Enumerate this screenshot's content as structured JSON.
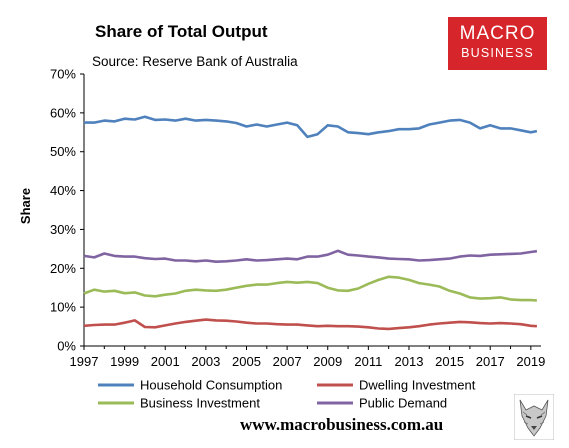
{
  "header": {
    "title": "Share of Total Output",
    "source": "Source: Reserve Bank of Australia"
  },
  "logo": {
    "line1": "MACRO",
    "line2": "BUSINESS"
  },
  "footer": {
    "url": "www.macrobusiness.com.au"
  },
  "colors": {
    "household": "#4f81bd",
    "dwelling": "#c0504d",
    "business": "#9bbb59",
    "public": "#8064a2",
    "brand": "#d7262b"
  },
  "chart_data": {
    "type": "line",
    "title": "Share of Total Output",
    "ylabel": "Share",
    "xlabel": "",
    "ylim": [
      0,
      70
    ],
    "xlim": [
      1997,
      2019.5
    ],
    "yticks": [
      "0%",
      "10%",
      "20%",
      "30%",
      "40%",
      "50%",
      "60%",
      "70%"
    ],
    "xticks": [
      "1997",
      "1999",
      "2001",
      "2003",
      "2005",
      "2007",
      "2009",
      "2011",
      "2013",
      "2015",
      "2017",
      "2019"
    ],
    "grid": false,
    "legend": "bottom",
    "series": [
      {
        "name": "Household Consumption",
        "color": "#4f81bd",
        "points": [
          [
            1997,
            57.5
          ],
          [
            1997.5,
            57.5
          ],
          [
            1998,
            58
          ],
          [
            1998.5,
            57.8
          ],
          [
            1999,
            58.5
          ],
          [
            1999.5,
            58.3
          ],
          [
            2000,
            59
          ],
          [
            2000.5,
            58.2
          ],
          [
            2001,
            58.3
          ],
          [
            2001.5,
            58
          ],
          [
            2002,
            58.5
          ],
          [
            2002.5,
            58
          ],
          [
            2003,
            58.2
          ],
          [
            2003.5,
            58
          ],
          [
            2004,
            57.8
          ],
          [
            2004.5,
            57.4
          ],
          [
            2005,
            56.5
          ],
          [
            2005.5,
            57
          ],
          [
            2006,
            56.5
          ],
          [
            2006.5,
            57
          ],
          [
            2007,
            57.5
          ],
          [
            2007.5,
            56.8
          ],
          [
            2008,
            53.8
          ],
          [
            2008.5,
            54.5
          ],
          [
            2009,
            56.8
          ],
          [
            2009.5,
            56.5
          ],
          [
            2010,
            55
          ],
          [
            2010.5,
            54.8
          ],
          [
            2011,
            54.5
          ],
          [
            2011.5,
            55
          ],
          [
            2012,
            55.3
          ],
          [
            2012.5,
            55.8
          ],
          [
            2013,
            55.8
          ],
          [
            2013.5,
            56
          ],
          [
            2014,
            57
          ],
          [
            2014.5,
            57.5
          ],
          [
            2015,
            58
          ],
          [
            2015.5,
            58.2
          ],
          [
            2016,
            57.5
          ],
          [
            2016.5,
            56
          ],
          [
            2017,
            56.8
          ],
          [
            2017.5,
            56
          ],
          [
            2018,
            56
          ],
          [
            2018.5,
            55.5
          ],
          [
            2019,
            55
          ],
          [
            2019.3,
            55.3
          ]
        ]
      },
      {
        "name": "Dwelling Investment",
        "color": "#c0504d",
        "points": [
          [
            1997,
            5.2
          ],
          [
            1997.5,
            5.4
          ],
          [
            1998,
            5.5
          ],
          [
            1998.5,
            5.5
          ],
          [
            1999,
            6
          ],
          [
            1999.5,
            6.6
          ],
          [
            2000,
            4.9
          ],
          [
            2000.5,
            4.8
          ],
          [
            2001,
            5.3
          ],
          [
            2001.5,
            5.8
          ],
          [
            2002,
            6.2
          ],
          [
            2002.5,
            6.5
          ],
          [
            2003,
            6.8
          ],
          [
            2003.5,
            6.6
          ],
          [
            2004,
            6.5
          ],
          [
            2004.5,
            6.3
          ],
          [
            2005,
            6
          ],
          [
            2005.5,
            5.8
          ],
          [
            2006,
            5.8
          ],
          [
            2006.5,
            5.6
          ],
          [
            2007,
            5.5
          ],
          [
            2007.5,
            5.5
          ],
          [
            2008,
            5.3
          ],
          [
            2008.5,
            5.1
          ],
          [
            2009,
            5.2
          ],
          [
            2009.5,
            5.1
          ],
          [
            2010,
            5.1
          ],
          [
            2010.5,
            5
          ],
          [
            2011,
            4.8
          ],
          [
            2011.5,
            4.5
          ],
          [
            2012,
            4.4
          ],
          [
            2012.5,
            4.6
          ],
          [
            2013,
            4.8
          ],
          [
            2013.5,
            5.1
          ],
          [
            2014,
            5.5
          ],
          [
            2014.5,
            5.8
          ],
          [
            2015,
            6
          ],
          [
            2015.5,
            6.2
          ],
          [
            2016,
            6.1
          ],
          [
            2016.5,
            5.9
          ],
          [
            2017,
            5.8
          ],
          [
            2017.5,
            5.9
          ],
          [
            2018,
            5.8
          ],
          [
            2018.5,
            5.6
          ],
          [
            2019,
            5.2
          ],
          [
            2019.3,
            5.1
          ]
        ]
      },
      {
        "name": "Business Investment",
        "color": "#9bbb59",
        "points": [
          [
            1997,
            13.5
          ],
          [
            1997.5,
            14.5
          ],
          [
            1998,
            14
          ],
          [
            1998.5,
            14.2
          ],
          [
            1999,
            13.6
          ],
          [
            1999.5,
            13.8
          ],
          [
            2000,
            13
          ],
          [
            2000.5,
            12.8
          ],
          [
            2001,
            13.2
          ],
          [
            2001.5,
            13.5
          ],
          [
            2002,
            14.2
          ],
          [
            2002.5,
            14.5
          ],
          [
            2003,
            14.3
          ],
          [
            2003.5,
            14.2
          ],
          [
            2004,
            14.5
          ],
          [
            2004.5,
            15
          ],
          [
            2005,
            15.5
          ],
          [
            2005.5,
            15.8
          ],
          [
            2006,
            15.8
          ],
          [
            2006.5,
            16.2
          ],
          [
            2007,
            16.5
          ],
          [
            2007.5,
            16.3
          ],
          [
            2008,
            16.5
          ],
          [
            2008.5,
            16.2
          ],
          [
            2009,
            15
          ],
          [
            2009.5,
            14.3
          ],
          [
            2010,
            14.2
          ],
          [
            2010.5,
            14.8
          ],
          [
            2011,
            16
          ],
          [
            2011.5,
            17
          ],
          [
            2012,
            17.8
          ],
          [
            2012.5,
            17.6
          ],
          [
            2013,
            17
          ],
          [
            2013.5,
            16.2
          ],
          [
            2014,
            15.8
          ],
          [
            2014.5,
            15.3
          ],
          [
            2015,
            14.2
          ],
          [
            2015.5,
            13.5
          ],
          [
            2016,
            12.5
          ],
          [
            2016.5,
            12.2
          ],
          [
            2017,
            12.3
          ],
          [
            2017.5,
            12.5
          ],
          [
            2018,
            12
          ],
          [
            2018.5,
            11.8
          ],
          [
            2019,
            11.8
          ],
          [
            2019.3,
            11.7
          ]
        ]
      },
      {
        "name": "Public Demand",
        "color": "#8064a2",
        "points": [
          [
            1997,
            23.2
          ],
          [
            1997.5,
            22.8
          ],
          [
            1998,
            23.8
          ],
          [
            1998.5,
            23.2
          ],
          [
            1999,
            23
          ],
          [
            1999.5,
            23
          ],
          [
            2000,
            22.6
          ],
          [
            2000.5,
            22.4
          ],
          [
            2001,
            22.5
          ],
          [
            2001.5,
            22
          ],
          [
            2002,
            22
          ],
          [
            2002.5,
            21.8
          ],
          [
            2003,
            22
          ],
          [
            2003.5,
            21.7
          ],
          [
            2004,
            21.8
          ],
          [
            2004.5,
            22
          ],
          [
            2005,
            22.3
          ],
          [
            2005.5,
            22
          ],
          [
            2006,
            22.1
          ],
          [
            2006.5,
            22.3
          ],
          [
            2007,
            22.5
          ],
          [
            2007.5,
            22.3
          ],
          [
            2008,
            23
          ],
          [
            2008.5,
            23
          ],
          [
            2009,
            23.5
          ],
          [
            2009.5,
            24.5
          ],
          [
            2010,
            23.5
          ],
          [
            2010.5,
            23.3
          ],
          [
            2011,
            23
          ],
          [
            2011.5,
            22.8
          ],
          [
            2012,
            22.5
          ],
          [
            2012.5,
            22.4
          ],
          [
            2013,
            22.3
          ],
          [
            2013.5,
            22
          ],
          [
            2014,
            22.1
          ],
          [
            2014.5,
            22.3
          ],
          [
            2015,
            22.5
          ],
          [
            2015.5,
            23
          ],
          [
            2016,
            23.3
          ],
          [
            2016.5,
            23.2
          ],
          [
            2017,
            23.5
          ],
          [
            2017.5,
            23.6
          ],
          [
            2018,
            23.7
          ],
          [
            2018.5,
            23.8
          ],
          [
            2019,
            24.2
          ],
          [
            2019.3,
            24.4
          ]
        ]
      }
    ]
  }
}
